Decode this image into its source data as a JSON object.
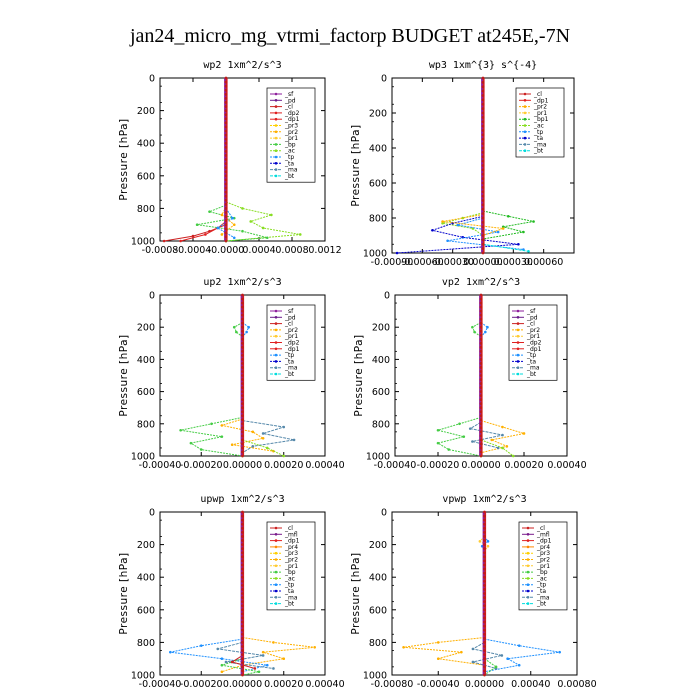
{
  "figure": {
    "title": "jan24_micro_mg_vtrmi_factorp  BUDGET at245E,-7N"
  },
  "colors": {
    "_sf": "#8e1f9c",
    "_pd": "#6a1a8a",
    "_cl": "#cc2222",
    "_dp2": "#e02020",
    "_dp1": "#e02020",
    "_pr2": "#ffb000",
    "_pr1": "#ffcc33",
    "_pr3": "#ffd000",
    "_pr4": "#ff8800",
    "_bp1": "#22bb22",
    "_bp": "#44cc44",
    "_ac": "#88dd22",
    "_tp": "#1e90ff",
    "_ta": "#0000cc",
    "_ma": "#5588aa",
    "_bt": "#00dddd",
    "_mfl": "#7a1b8c"
  },
  "chart_data": [
    {
      "type": "line",
      "title": "wp2  1xm^2/s^3",
      "ylabel": "Pressure [hPa]",
      "xlim": [
        -0.0008,
        0.0012
      ],
      "xticks": [
        -0.0008,
        -0.0004,
        0,
        0.0004,
        0.0008,
        0.0012
      ],
      "xticklabels": [
        "-0.0008",
        "-0.0004",
        "-0.0000",
        "0.0004",
        "0.0008",
        "0.0012"
      ],
      "ylim": [
        0,
        1000
      ],
      "yticks": [
        0,
        200,
        400,
        600,
        800,
        1000
      ],
      "legend": [
        "_sf",
        "_pd",
        "_cl",
        "_dp2",
        "_dp1",
        "_pr3",
        "_pr2",
        "_pr1",
        "_bp",
        "_ac",
        "_tp",
        "_ta",
        "_ma",
        "_bt"
      ],
      "series": [
        {
          "name": "_ac",
          "p": [
            760,
            800,
            840,
            880,
            920,
            960,
            1000
          ],
          "x": [
            0,
            0.0002,
            0.00055,
            0.0003,
            0.00045,
            0.0009,
            0
          ]
        },
        {
          "name": "_bp",
          "p": [
            780,
            820,
            860,
            900,
            940,
            980,
            1000
          ],
          "x": [
            0,
            -0.0002,
            0.0001,
            -0.00035,
            0.0002,
            0.0005,
            0
          ]
        },
        {
          "name": "_cl",
          "p": [
            900,
            940,
            970,
            1000
          ],
          "x": [
            0,
            -0.0002,
            -0.0004,
            -0.00075
          ]
        },
        {
          "name": "_dp2",
          "p": [
            880,
            920,
            960,
            1000
          ],
          "x": [
            0,
            -0.0001,
            -0.00025,
            -0.00055
          ]
        },
        {
          "name": "_tp",
          "p": [
            800,
            860,
            920,
            980
          ],
          "x": [
            0,
            8e-05,
            -0.0001,
            0.0001
          ]
        },
        {
          "name": "_pr2",
          "p": [
            790,
            840,
            900,
            960
          ],
          "x": [
            0,
            -5e-05,
            0.0001,
            -5e-05
          ]
        }
      ]
    },
    {
      "type": "line",
      "title": "wp3  1xm^{3} s^{-4}",
      "ylabel": "Pressure [hPa]",
      "xlim": [
        -0.0009,
        0.0009
      ],
      "xticks": [
        -0.0009,
        -0.0006,
        -0.0003,
        0,
        0.0003,
        0.0006
      ],
      "xticklabels": [
        "-0.00090",
        "-0.00060",
        "-0.00030",
        "0.00000",
        "0.00030",
        "0.00060"
      ],
      "ylim": [
        0,
        1000
      ],
      "yticks": [
        0,
        200,
        400,
        600,
        800,
        1000
      ],
      "legend": [
        "_cl",
        "_dp1",
        "_pr2",
        "_pr1",
        "_bp1",
        "_ac",
        "_tp",
        "_ta",
        "_ma",
        "_bt"
      ],
      "series": [
        {
          "name": "_bp1",
          "p": [
            760,
            790,
            820,
            850,
            880,
            920
          ],
          "x": [
            0,
            0.00025,
            0.0005,
            0.0002,
            0.0004,
            0
          ]
        },
        {
          "name": "_ac",
          "p": [
            770,
            800,
            830,
            860,
            900
          ],
          "x": [
            0,
            -0.0002,
            -0.0004,
            -0.0001,
            0
          ]
        },
        {
          "name": "_ta",
          "p": [
            790,
            830,
            870,
            910,
            950,
            1000
          ],
          "x": [
            0,
            -0.0003,
            -0.0005,
            -0.0002,
            0.00035,
            -0.00085
          ]
        },
        {
          "name": "_tp",
          "p": [
            800,
            840,
            880,
            930,
            980
          ],
          "x": [
            0,
            -0.00025,
            0.00015,
            -0.00035,
            0.0004
          ]
        },
        {
          "name": "_pr2",
          "p": [
            780,
            820,
            860,
            900
          ],
          "x": [
            0,
            -0.0004,
            0.0002,
            0
          ]
        },
        {
          "name": "_bt",
          "p": [
            950,
            990
          ],
          "x": [
            0,
            0.00045
          ]
        }
      ]
    },
    {
      "type": "line",
      "title": "up2  1xm^2/s^3",
      "ylabel": "Pressure [hPa]",
      "xlim": [
        -0.0004,
        0.0004
      ],
      "xticks": [
        -0.0004,
        -0.0002,
        0,
        0.0002,
        0.0004
      ],
      "xticklabels": [
        "-0.00040",
        "-0.00020",
        "0.00000",
        "0.00020",
        "0.00040"
      ],
      "ylim": [
        0,
        1000
      ],
      "yticks": [
        0,
        200,
        400,
        600,
        800,
        1000
      ],
      "legend": [
        "_sf",
        "_pd",
        "_cl",
        "_pr2",
        "_pr1",
        "_dp2",
        "_dp1",
        "_tp",
        "_ta",
        "_ma",
        "_bt"
      ],
      "series": [
        {
          "name": "_bp",
          "p": [
            170,
            200,
            230,
            260
          ],
          "x": [
            0,
            -4e-05,
            -3e-05,
            0
          ]
        },
        {
          "name": "_tp",
          "p": [
            170,
            200,
            230,
            260
          ],
          "x": [
            0,
            3e-05,
            2e-05,
            0
          ]
        },
        {
          "name": "_bp",
          "p": [
            760,
            800,
            840,
            880,
            920,
            960,
            1000
          ],
          "x": [
            0,
            -0.00015,
            -0.0003,
            -0.0001,
            -0.00025,
            -0.0002,
            0
          ]
        },
        {
          "name": "_ma",
          "p": [
            780,
            820,
            860,
            900,
            940,
            980
          ],
          "x": [
            0,
            0.0002,
            0.0001,
            0.00025,
            5e-05,
            0
          ]
        },
        {
          "name": "_pr2",
          "p": [
            770,
            810,
            850,
            890,
            930,
            970
          ],
          "x": [
            0,
            -0.0001,
            5e-05,
            0.0001,
            -5e-05,
            0.00015
          ]
        },
        {
          "name": "_ac",
          "p": [
            900,
            950,
            1000
          ],
          "x": [
            0,
            0.00012,
            0.0002
          ]
        }
      ]
    },
    {
      "type": "line",
      "title": "vp2  1xm^2/s^3",
      "ylabel": "Pressure [hPa]",
      "xlim": [
        -0.0004,
        0.0004
      ],
      "xticks": [
        -0.0004,
        -0.0002,
        0,
        0.0002,
        0.0004
      ],
      "xticklabels": [
        "-0.00040",
        "-0.00020",
        "0.00000",
        "0.00020",
        "0.00040"
      ],
      "ylim": [
        0,
        1000
      ],
      "yticks": [
        0,
        200,
        400,
        600,
        800,
        1000
      ],
      "legend": [
        "_sf",
        "_pd",
        "_cl",
        "_pr2",
        "_pr1",
        "_dp2",
        "_dp1",
        "_tp",
        "_ta",
        "_ma",
        "_bt"
      ],
      "series": [
        {
          "name": "_bp",
          "p": [
            170,
            200,
            230,
            260
          ],
          "x": [
            0,
            -4e-05,
            -3e-05,
            0
          ]
        },
        {
          "name": "_tp",
          "p": [
            170,
            200,
            230,
            260
          ],
          "x": [
            0,
            3e-05,
            2e-05,
            0
          ]
        },
        {
          "name": "_bp",
          "p": [
            760,
            800,
            840,
            880,
            920,
            960,
            1000
          ],
          "x": [
            0,
            -0.0001,
            -0.0002,
            -8e-05,
            -0.0002,
            -0.00015,
            0
          ]
        },
        {
          "name": "_pr2",
          "p": [
            780,
            820,
            860,
            900,
            940,
            980
          ],
          "x": [
            0,
            0.0001,
            0.0002,
            5e-05,
            0.00012,
            0
          ]
        },
        {
          "name": "_ma",
          "p": [
            790,
            830,
            870,
            910,
            950
          ],
          "x": [
            0,
            -5e-05,
            0.0001,
            -4e-05,
            8e-05
          ]
        },
        {
          "name": "_ac",
          "p": [
            900,
            950,
            1000
          ],
          "x": [
            0,
            0.0001,
            0.00015
          ]
        }
      ]
    },
    {
      "type": "line",
      "title": "upwp  1xm^2/s^3",
      "ylabel": "Pressure [hPa]",
      "xlim": [
        -0.0004,
        0.0004
      ],
      "xticks": [
        -0.0004,
        -0.0002,
        0,
        0.0002,
        0.0004
      ],
      "xticklabels": [
        "-0.00040",
        "-0.00020",
        "0.00000",
        "0.00020",
        "0.00040"
      ],
      "ylim": [
        0,
        1000
      ],
      "yticks": [
        0,
        200,
        400,
        600,
        800,
        1000
      ],
      "legend": [
        "_cl",
        "_mfl",
        "_dp1",
        "_pr4",
        "_pr3",
        "_pr2",
        "_pr1",
        "_bp",
        "_ac",
        "_tp",
        "_ta",
        "_ma",
        "_bt"
      ],
      "series": [
        {
          "name": "_pr2",
          "p": [
            770,
            800,
            830,
            860,
            900,
            940,
            980
          ],
          "x": [
            0,
            0.00015,
            0.00035,
            0.0001,
            0.0002,
            0,
            -0.0001
          ]
        },
        {
          "name": "_tp",
          "p": [
            780,
            820,
            860,
            900,
            940,
            980
          ],
          "x": [
            0,
            -0.0002,
            -0.00035,
            -0.0001,
            0.00012,
            0
          ]
        },
        {
          "name": "_ma",
          "p": [
            800,
            840,
            880,
            920,
            960
          ],
          "x": [
            0,
            -0.00012,
            0.0001,
            -8e-05,
            0.00015
          ]
        },
        {
          "name": "_bp",
          "p": [
            900,
            940,
            980,
            1000
          ],
          "x": [
            0,
            -0.0001,
            8e-05,
            0
          ]
        },
        {
          "name": "_cl",
          "p": [
            880,
            920,
            960
          ],
          "x": [
            0,
            -5e-05,
            6e-05
          ]
        }
      ]
    },
    {
      "type": "line",
      "title": "vpwp  1xm^2/s^3",
      "ylabel": "Pressure [hPa]",
      "xlim": [
        -0.0008,
        0.0008
      ],
      "xticks": [
        -0.0008,
        -0.0004,
        0,
        0.0004,
        0.0008
      ],
      "xticklabels": [
        "-0.00080",
        "-0.00040",
        "0.00000",
        "0.00040",
        "0.00080"
      ],
      "ylim": [
        0,
        1000
      ],
      "yticks": [
        0,
        200,
        400,
        600,
        800,
        1000
      ],
      "legend": [
        "_cl",
        "_mfl",
        "_dp1",
        "_pr4",
        "_pr3",
        "_pr2",
        "_pr1",
        "_bp",
        "_ac",
        "_tp",
        "_ta",
        "_ma",
        "_bt"
      ],
      "series": [
        {
          "name": "_pr1",
          "p": [
            150,
            180,
            210,
            240
          ],
          "x": [
            0,
            -4e-05,
            3e-05,
            0
          ]
        },
        {
          "name": "_tp",
          "p": [
            150,
            180,
            210,
            240
          ],
          "x": [
            0,
            3e-05,
            -2e-05,
            0
          ]
        },
        {
          "name": "_pr2",
          "p": [
            770,
            800,
            830,
            860,
            900,
            940
          ],
          "x": [
            0,
            -0.0004,
            -0.0007,
            -0.0002,
            -0.0004,
            0
          ]
        },
        {
          "name": "_tp",
          "p": [
            780,
            820,
            860,
            900,
            940,
            980
          ],
          "x": [
            0,
            0.0003,
            0.00065,
            0.0002,
            0.0003,
            0
          ]
        },
        {
          "name": "_ma",
          "p": [
            800,
            840,
            880,
            920,
            960
          ],
          "x": [
            0,
            -0.0001,
            0.00015,
            -0.0001,
            0.0001
          ]
        },
        {
          "name": "_bp",
          "p": [
            900,
            950,
            1000
          ],
          "x": [
            0,
            0.0001,
            0
          ]
        }
      ]
    }
  ]
}
